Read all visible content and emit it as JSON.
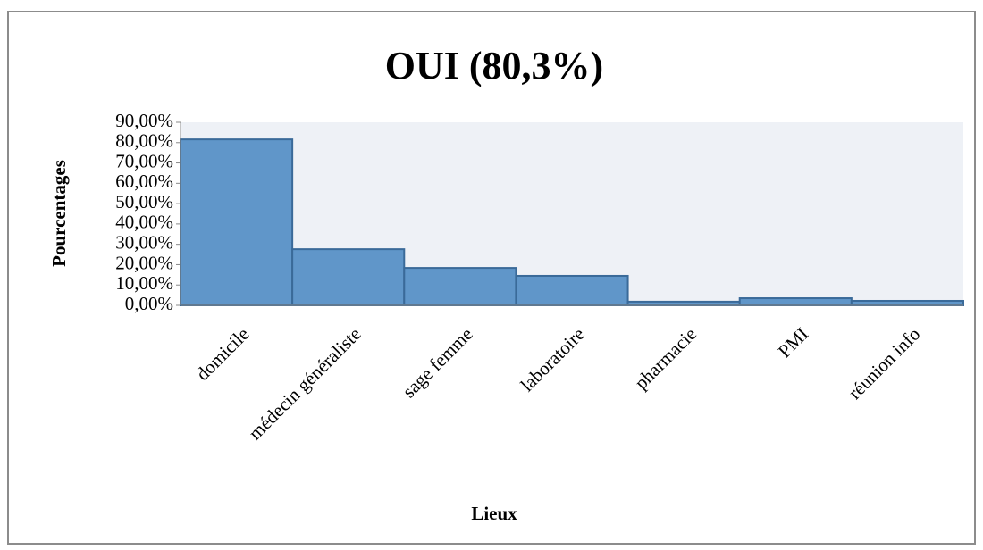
{
  "chart_data": {
    "type": "bar",
    "title": "OUI (80,3%)",
    "x_label": "Lieux",
    "y_label": "Pourcentages",
    "categories": [
      "domicile",
      "médecin généraliste",
      "sage femme",
      "laboratoire",
      "pharmacie",
      "PMI",
      "réunion info"
    ],
    "values": [
      81.6,
      27.6,
      18.4,
      14.5,
      1.8,
      3.5,
      2.2
    ],
    "color": "#6096c9",
    "ylim": [
      0,
      90
    ],
    "yticks": [
      {
        "value": 0,
        "label": "0,00%"
      },
      {
        "value": 10,
        "label": "10,00%"
      },
      {
        "value": 20,
        "label": "20,00%"
      },
      {
        "value": 30,
        "label": "30,00%"
      },
      {
        "value": 40,
        "label": "40,00%"
      },
      {
        "value": 50,
        "label": "50,00%"
      },
      {
        "value": 60,
        "label": "60,00%"
      },
      {
        "value": 70,
        "label": "70,00%"
      },
      {
        "value": 80,
        "label": "80,00%"
      },
      {
        "value": 90,
        "label": "90,00%"
      }
    ],
    "grid": false
  }
}
